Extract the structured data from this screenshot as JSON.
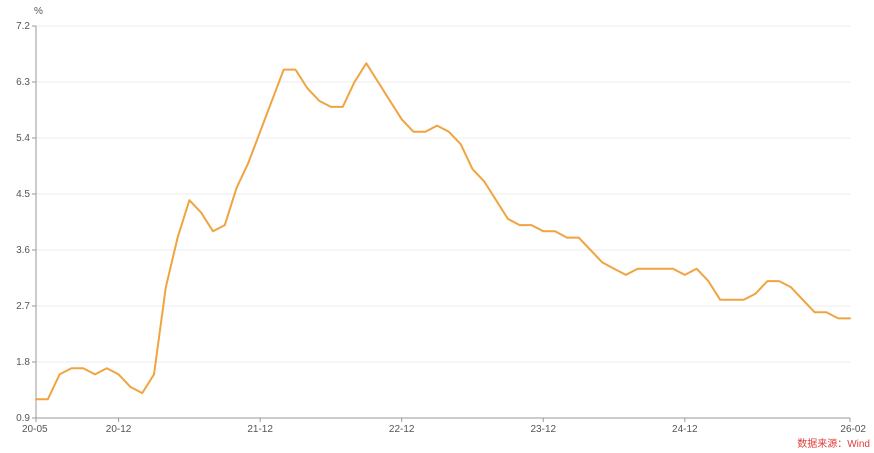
{
  "chart_data": {
    "type": "line",
    "title": "",
    "xlabel": "",
    "ylabel": "",
    "unit": "%",
    "source": "数据来源：Wind",
    "colors": {
      "line": "#f0a441",
      "axis": "#999999",
      "grid": "#ececec",
      "text": "#555555",
      "source": "#e03b3b"
    },
    "grid": true,
    "ylim": [
      0.9,
      7.2
    ],
    "yticks": [
      "0.9",
      "1.8",
      "2.7",
      "3.6",
      "4.5",
      "5.4",
      "6.3",
      "7.2"
    ],
    "xticks": [
      "20-05",
      "20-12",
      "21-12",
      "22-12",
      "23-12",
      "24-12",
      "26-02"
    ],
    "series": [
      {
        "values": [
          {
            "x": "20-05",
            "y": 1.2
          },
          {
            "x": "20-06",
            "y": 1.2
          },
          {
            "x": "20-07",
            "y": 1.6
          },
          {
            "x": "20-08",
            "y": 1.7
          },
          {
            "x": "20-09",
            "y": 1.7
          },
          {
            "x": "20-10",
            "y": 1.6
          },
          {
            "x": "20-11",
            "y": 1.7
          },
          {
            "x": "20-12",
            "y": 1.6
          },
          {
            "x": "21-01",
            "y": 1.4
          },
          {
            "x": "21-02",
            "y": 1.3
          },
          {
            "x": "21-03",
            "y": 1.6
          },
          {
            "x": "21-04",
            "y": 3.0
          },
          {
            "x": "21-05",
            "y": 3.8
          },
          {
            "x": "21-06",
            "y": 4.4
          },
          {
            "x": "21-07",
            "y": 4.2
          },
          {
            "x": "21-08",
            "y": 3.9
          },
          {
            "x": "21-09",
            "y": 4.0
          },
          {
            "x": "21-10",
            "y": 4.6
          },
          {
            "x": "21-11",
            "y": 5.0
          },
          {
            "x": "21-12",
            "y": 5.5
          },
          {
            "x": "22-01",
            "y": 6.0
          },
          {
            "x": "22-02",
            "y": 6.5
          },
          {
            "x": "22-03",
            "y": 6.5
          },
          {
            "x": "22-04",
            "y": 6.2
          },
          {
            "x": "22-05",
            "y": 6.0
          },
          {
            "x": "22-06",
            "y": 5.9
          },
          {
            "x": "22-07",
            "y": 5.9
          },
          {
            "x": "22-08",
            "y": 6.3
          },
          {
            "x": "22-09",
            "y": 6.6
          },
          {
            "x": "22-10",
            "y": 6.3
          },
          {
            "x": "22-11",
            "y": 6.0
          },
          {
            "x": "22-12",
            "y": 5.7
          },
          {
            "x": "23-01",
            "y": 5.5
          },
          {
            "x": "23-02",
            "y": 5.5
          },
          {
            "x": "23-03",
            "y": 5.6
          },
          {
            "x": "23-04",
            "y": 5.5
          },
          {
            "x": "23-05",
            "y": 5.3
          },
          {
            "x": "23-06",
            "y": 4.9
          },
          {
            "x": "23-07",
            "y": 4.7
          },
          {
            "x": "23-08",
            "y": 4.4
          },
          {
            "x": "23-09",
            "y": 4.1
          },
          {
            "x": "23-10",
            "y": 4.0
          },
          {
            "x": "23-11",
            "y": 4.0
          },
          {
            "x": "23-12",
            "y": 3.9
          },
          {
            "x": "24-01",
            "y": 3.9
          },
          {
            "x": "24-02",
            "y": 3.8
          },
          {
            "x": "24-03",
            "y": 3.8
          },
          {
            "x": "24-04",
            "y": 3.6
          },
          {
            "x": "24-05",
            "y": 3.4
          },
          {
            "x": "24-06",
            "y": 3.3
          },
          {
            "x": "24-07",
            "y": 3.2
          },
          {
            "x": "24-08",
            "y": 3.3
          },
          {
            "x": "24-09",
            "y": 3.3
          },
          {
            "x": "24-10",
            "y": 3.3
          },
          {
            "x": "24-11",
            "y": 3.3
          },
          {
            "x": "24-12",
            "y": 3.2
          },
          {
            "x": "25-01",
            "y": 3.3
          },
          {
            "x": "25-02",
            "y": 3.1
          },
          {
            "x": "25-03",
            "y": 2.8
          },
          {
            "x": "25-04",
            "y": 2.8
          },
          {
            "x": "25-05",
            "y": 2.8
          },
          {
            "x": "25-06",
            "y": 2.9
          },
          {
            "x": "25-07",
            "y": 3.1
          },
          {
            "x": "25-08",
            "y": 3.1
          },
          {
            "x": "25-09",
            "y": 3.0
          },
          {
            "x": "25-10",
            "y": 2.8
          },
          {
            "x": "25-11",
            "y": 2.6
          },
          {
            "x": "25-12",
            "y": 2.6
          },
          {
            "x": "26-01",
            "y": 2.5
          },
          {
            "x": "26-02",
            "y": 2.5
          }
        ]
      }
    ]
  }
}
